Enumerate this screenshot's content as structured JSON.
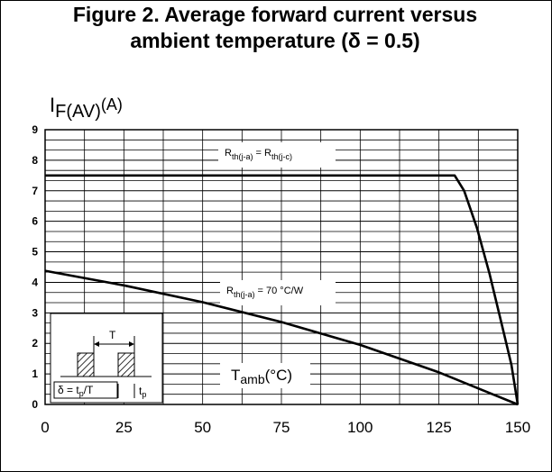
{
  "title_line1": "Figure 2. Average forward current versus",
  "title_line2": "ambient temperature (δ = 0.5)",
  "chart_data": {
    "type": "line",
    "title": "Figure 2. Average forward current versus ambient temperature (δ = 0.5)",
    "ylabel": {
      "main": "I",
      "sub": "F(AV)",
      "unit": "(A)"
    },
    "xlabel": {
      "main": "T",
      "sub": "amb",
      "unit": "(°C)"
    },
    "xlim": [
      0,
      150
    ],
    "ylim": [
      0,
      9
    ],
    "x_ticks": [
      0,
      25,
      50,
      75,
      100,
      125,
      150
    ],
    "y_ticks": [
      0,
      1,
      2,
      3,
      4,
      5,
      6,
      7,
      8,
      9
    ],
    "grid": true,
    "series": [
      {
        "name": "Rth(j-a) = Rth(j-c)",
        "label": {
          "pre": "R",
          "sub": "th(j-a)",
          "mid": " = R",
          "sub2": "th(j-c)"
        },
        "x": [
          0,
          130,
          133,
          137,
          141,
          145,
          148,
          150
        ],
        "y": [
          7.5,
          7.5,
          7.0,
          5.8,
          4.3,
          2.6,
          1.3,
          0
        ]
      },
      {
        "name": "Rth(j-a) = 70 °C/W",
        "label": {
          "pre": "R",
          "sub": "th(j-a)",
          "mid": " = 70 °C/W",
          "sub2": ""
        },
        "x": [
          0,
          25,
          50,
          75,
          100,
          125,
          140,
          150
        ],
        "y": [
          4.38,
          3.9,
          3.35,
          2.7,
          1.95,
          1.05,
          0.42,
          0
        ]
      }
    ],
    "inset": {
      "period_label": "T",
      "duty_label": {
        "pre": "δ = t",
        "sub": "p",
        "post": "/T"
      },
      "pulse_label": {
        "pre": "t",
        "sub": "p"
      }
    }
  }
}
